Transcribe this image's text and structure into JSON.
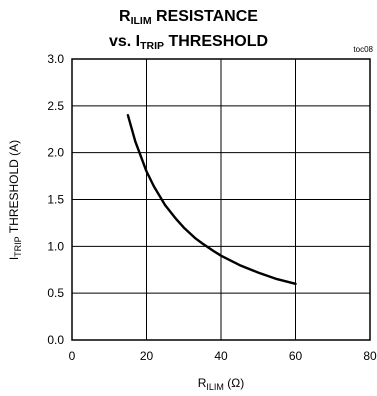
{
  "title": {
    "line1": {
      "main": "R",
      "sub": "ILIM",
      "rest": " RESISTANCE"
    },
    "line2": {
      "prefix": "vs. I",
      "sub": "TRIP",
      "rest": " THRESHOLD"
    }
  },
  "code": "toc08",
  "axes": {
    "xlabel": {
      "main": "R",
      "sub": "ILIM",
      "rest": " (Ω)"
    },
    "ylabel": {
      "main": "I",
      "sub": "TRIP",
      "rest": " THRESHOLD (A)"
    }
  },
  "chart_data": {
    "type": "line",
    "title": "RILIM RESISTANCE vs. ITRIP THRESHOLD",
    "xlabel": "RILIM (Ω)",
    "ylabel": "ITRIP THRESHOLD (A)",
    "xlim": [
      0,
      80
    ],
    "ylim": [
      0.0,
      3.0
    ],
    "x_ticks": [
      "0",
      "20",
      "40",
      "60",
      "80"
    ],
    "y_ticks": [
      "0.0",
      "0.5",
      "1.0",
      "1.5",
      "2.0",
      "2.5",
      "3.0"
    ],
    "grid": true,
    "series": [
      {
        "x": [
          15,
          17,
          20,
          22,
          25,
          28,
          30,
          33,
          35,
          38,
          40,
          45,
          50,
          55,
          60
        ],
        "y": [
          2.4,
          2.12,
          1.8,
          1.64,
          1.44,
          1.29,
          1.2,
          1.09,
          1.03,
          0.95,
          0.9,
          0.8,
          0.72,
          0.65,
          0.6
        ]
      }
    ]
  }
}
